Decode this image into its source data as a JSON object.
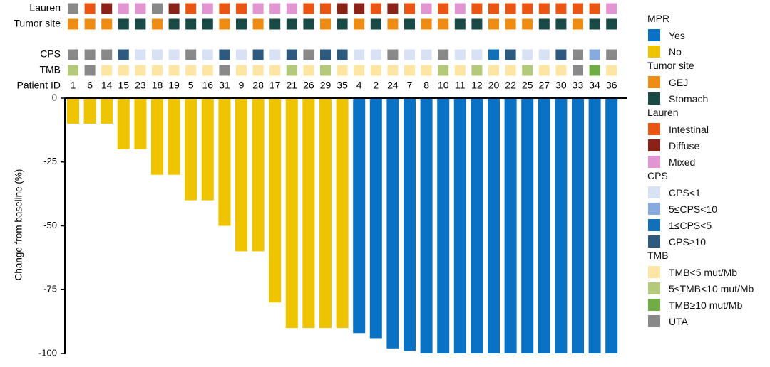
{
  "chart_data": {
    "type": "bar",
    "ylabel": "Change from baseline (%)",
    "yticks": [
      "0",
      "-25",
      "-50",
      "-75",
      "-100"
    ],
    "ylim": [
      -100,
      0
    ],
    "row_labels": {
      "lauren": "Lauren",
      "tumor_site": "Tumor site",
      "cps": "CPS",
      "tmb": "TMB",
      "patient_id": "Patient ID"
    },
    "patients": [
      {
        "id": "1",
        "change": -10,
        "mpr": "No",
        "lauren": "UTA",
        "tumor_site": "GEJ",
        "cps": "UTA",
        "tmb": "5≤TMB<10 mut/Mb"
      },
      {
        "id": "6",
        "change": -10,
        "mpr": "No",
        "lauren": "Intestinal",
        "tumor_site": "GEJ",
        "cps": "UTA",
        "tmb": "UTA"
      },
      {
        "id": "14",
        "change": -10,
        "mpr": "No",
        "lauren": "Diffuse",
        "tumor_site": "GEJ",
        "cps": "UTA",
        "tmb": "TMB<5 mut/Mb"
      },
      {
        "id": "15",
        "change": -20,
        "mpr": "No",
        "lauren": "Mixed",
        "tumor_site": "Stomach",
        "cps": "CPS≥10",
        "tmb": "TMB<5 mut/Mb"
      },
      {
        "id": "23",
        "change": -20,
        "mpr": "No",
        "lauren": "Mixed",
        "tumor_site": "Stomach",
        "cps": "CPS<1",
        "tmb": "TMB<5 mut/Mb"
      },
      {
        "id": "18",
        "change": -30,
        "mpr": "No",
        "lauren": "UTA",
        "tumor_site": "GEJ",
        "cps": "CPS<1",
        "tmb": "TMB<5 mut/Mb"
      },
      {
        "id": "19",
        "change": -30,
        "mpr": "No",
        "lauren": "Diffuse",
        "tumor_site": "Stomach",
        "cps": "CPS<1",
        "tmb": "TMB<5 mut/Mb"
      },
      {
        "id": "5",
        "change": -40,
        "mpr": "No",
        "lauren": "Intestinal",
        "tumor_site": "Stomach",
        "cps": "UTA",
        "tmb": "TMB<5 mut/Mb"
      },
      {
        "id": "16",
        "change": -40,
        "mpr": "No",
        "lauren": "Mixed",
        "tumor_site": "Stomach",
        "cps": "CPS<1",
        "tmb": "TMB<5 mut/Mb"
      },
      {
        "id": "31",
        "change": -50,
        "mpr": "No",
        "lauren": "Intestinal",
        "tumor_site": "GEJ",
        "cps": "CPS≥10",
        "tmb": "UTA"
      },
      {
        "id": "9",
        "change": -60,
        "mpr": "No",
        "lauren": "Intestinal",
        "tumor_site": "Stomach",
        "cps": "CPS<1",
        "tmb": "TMB<5 mut/Mb"
      },
      {
        "id": "28",
        "change": -60,
        "mpr": "No",
        "lauren": "Mixed",
        "tumor_site": "GEJ",
        "cps": "CPS≥10",
        "tmb": "TMB<5 mut/Mb"
      },
      {
        "id": "17",
        "change": -80,
        "mpr": "No",
        "lauren": "Mixed",
        "tumor_site": "Stomach",
        "cps": "CPS<1",
        "tmb": "TMB<5 mut/Mb"
      },
      {
        "id": "21",
        "change": -90,
        "mpr": "No",
        "lauren": "Mixed",
        "tumor_site": "Stomach",
        "cps": "CPS≥10",
        "tmb": "5≤TMB<10 mut/Mb"
      },
      {
        "id": "26",
        "change": -90,
        "mpr": "No",
        "lauren": "Intestinal",
        "tumor_site": "Stomach",
        "cps": "UTA",
        "tmb": "TMB<5 mut/Mb"
      },
      {
        "id": "29",
        "change": -90,
        "mpr": "No",
        "lauren": "Intestinal",
        "tumor_site": "GEJ",
        "cps": "CPS≥10",
        "tmb": "5≤TMB<10 mut/Mb"
      },
      {
        "id": "35",
        "change": -90,
        "mpr": "No",
        "lauren": "Diffuse",
        "tumor_site": "Stomach",
        "cps": "CPS≥10",
        "tmb": "TMB<5 mut/Mb"
      },
      {
        "id": "4",
        "change": -92,
        "mpr": "Yes",
        "lauren": "Diffuse",
        "tumor_site": "GEJ",
        "cps": "CPS<1",
        "tmb": "TMB<5 mut/Mb"
      },
      {
        "id": "2",
        "change": -94,
        "mpr": "Yes",
        "lauren": "Intestinal",
        "tumor_site": "Stomach",
        "cps": "CPS<1",
        "tmb": "TMB<5 mut/Mb"
      },
      {
        "id": "24",
        "change": -98,
        "mpr": "Yes",
        "lauren": "Diffuse",
        "tumor_site": "GEJ",
        "cps": "UTA",
        "tmb": "TMB<5 mut/Mb"
      },
      {
        "id": "7",
        "change": -99,
        "mpr": "Yes",
        "lauren": "Intestinal",
        "tumor_site": "Stomach",
        "cps": "CPS<1",
        "tmb": "TMB<5 mut/Mb"
      },
      {
        "id": "8",
        "change": -100,
        "mpr": "Yes",
        "lauren": "Mixed",
        "tumor_site": "GEJ",
        "cps": "CPS<1",
        "tmb": "TMB<5 mut/Mb"
      },
      {
        "id": "10",
        "change": -100,
        "mpr": "Yes",
        "lauren": "Intestinal",
        "tumor_site": "GEJ",
        "cps": "UTA",
        "tmb": "5≤TMB<10 mut/Mb"
      },
      {
        "id": "11",
        "change": -100,
        "mpr": "Yes",
        "lauren": "Mixed",
        "tumor_site": "Stomach",
        "cps": "CPS<1",
        "tmb": "TMB<5 mut/Mb"
      },
      {
        "id": "12",
        "change": -100,
        "mpr": "Yes",
        "lauren": "Intestinal",
        "tumor_site": "Stomach",
        "cps": "CPS<1",
        "tmb": "5≤TMB<10 mut/Mb"
      },
      {
        "id": "20",
        "change": -100,
        "mpr": "Yes",
        "lauren": "Intestinal",
        "tumor_site": "GEJ",
        "cps": "1≤CPS<5",
        "tmb": "TMB<5 mut/Mb"
      },
      {
        "id": "22",
        "change": -100,
        "mpr": "Yes",
        "lauren": "Intestinal",
        "tumor_site": "GEJ",
        "cps": "CPS≥10",
        "tmb": "TMB<5 mut/Mb"
      },
      {
        "id": "25",
        "change": -100,
        "mpr": "Yes",
        "lauren": "Intestinal",
        "tumor_site": "GEJ",
        "cps": "CPS<1",
        "tmb": "5≤TMB<10 mut/Mb"
      },
      {
        "id": "27",
        "change": -100,
        "mpr": "Yes",
        "lauren": "Intestinal",
        "tumor_site": "Stomach",
        "cps": "CPS<1",
        "tmb": "TMB<5 mut/Mb"
      },
      {
        "id": "30",
        "change": -100,
        "mpr": "Yes",
        "lauren": "Intestinal",
        "tumor_site": "Stomach",
        "cps": "CPS≥10",
        "tmb": "TMB<5 mut/Mb"
      },
      {
        "id": "33",
        "change": -100,
        "mpr": "Yes",
        "lauren": "Intestinal",
        "tumor_site": "GEJ",
        "cps": "UTA",
        "tmb": "UTA"
      },
      {
        "id": "34",
        "change": -100,
        "mpr": "Yes",
        "lauren": "Intestinal",
        "tumor_site": "Stomach",
        "cps": "5≤CPS<10",
        "tmb": "TMB≥10 mut/Mb"
      },
      {
        "id": "36",
        "change": -100,
        "mpr": "Yes",
        "lauren": "Mixed",
        "tumor_site": "Stomach",
        "cps": "UTA",
        "tmb": "TMB<5 mut/Mb"
      }
    ],
    "legend": [
      {
        "key": "mpr",
        "title": "MPR",
        "items": [
          {
            "label": "Yes",
            "color": "#0a72c4"
          },
          {
            "label": "No",
            "color": "#eec300"
          }
        ]
      },
      {
        "key": "tumor_site",
        "title": "Tumor site",
        "items": [
          {
            "label": "GEJ",
            "color": "#ef8c13"
          },
          {
            "label": "Stomach",
            "color": "#194a45"
          }
        ]
      },
      {
        "key": "lauren",
        "title": "Lauren",
        "items": [
          {
            "label": "Intestinal",
            "color": "#ea5514"
          },
          {
            "label": "Diffuse",
            "color": "#8a2218"
          },
          {
            "label": "Mixed",
            "color": "#e196d2"
          }
        ]
      },
      {
        "key": "cps",
        "title": "CPS",
        "items": [
          {
            "label": "CPS<1",
            "color": "#d8e2f4"
          },
          {
            "label": "5≤CPS<10",
            "color": "#87aadf"
          },
          {
            "label": "1≤CPS<5",
            "color": "#1070b9"
          },
          {
            "label": "CPS≥10",
            "color": "#2d5a7e"
          }
        ]
      },
      {
        "key": "tmb",
        "title": "TMB",
        "items": [
          {
            "label": "TMB<5 mut/Mb",
            "color": "#fde5a3"
          },
          {
            "label": "5≤TMB<10 mut/Mb",
            "color": "#b5c97b"
          },
          {
            "label": "TMB≥10 mut/Mb",
            "color": "#71ad45"
          },
          {
            "label": "UTA",
            "color": "#898989"
          }
        ]
      }
    ]
  }
}
